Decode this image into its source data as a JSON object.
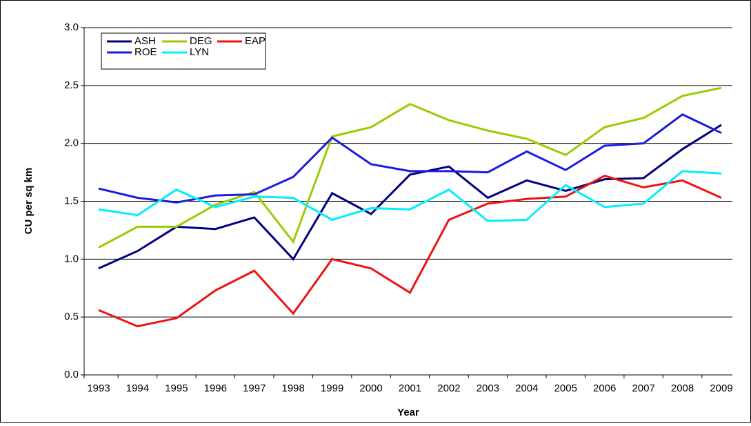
{
  "chart_data": {
    "type": "line",
    "xlabel": "Year",
    "ylabel": "CU per sq km",
    "categories": [
      "1993",
      "1994",
      "1995",
      "1996",
      "1997",
      "1998",
      "1999",
      "2000",
      "2001",
      "2002",
      "2003",
      "2004",
      "2005",
      "2006",
      "2007",
      "2008",
      "2009"
    ],
    "series": [
      {
        "name": "ASH",
        "color": "#000080",
        "values": [
          0.92,
          1.07,
          1.28,
          1.26,
          1.36,
          1.0,
          1.57,
          1.39,
          1.73,
          1.8,
          1.53,
          1.68,
          1.59,
          1.69,
          1.7,
          1.95,
          2.16
        ]
      },
      {
        "name": "DEG",
        "color": "#99cc00",
        "values": [
          1.1,
          1.28,
          1.28,
          1.47,
          1.58,
          1.15,
          2.06,
          2.14,
          2.34,
          2.2,
          2.11,
          2.04,
          1.9,
          2.14,
          2.22,
          2.41,
          2.48
        ]
      },
      {
        "name": "EAP",
        "color": "#ee1111",
        "values": [
          0.56,
          0.42,
          0.49,
          0.73,
          0.9,
          0.53,
          1.0,
          0.92,
          0.71,
          1.34,
          1.48,
          1.52,
          1.54,
          1.72,
          1.62,
          1.68,
          1.53
        ]
      },
      {
        "name": "ROE",
        "color": "#1a1ae0",
        "values": [
          1.61,
          1.53,
          1.49,
          1.55,
          1.56,
          1.71,
          2.05,
          1.82,
          1.76,
          1.76,
          1.75,
          1.93,
          1.77,
          1.98,
          2.0,
          2.25,
          2.09
        ]
      },
      {
        "name": "LYN",
        "color": "#00eeff",
        "values": [
          1.43,
          1.38,
          1.6,
          1.45,
          1.54,
          1.53,
          1.34,
          1.44,
          1.43,
          1.6,
          1.33,
          1.34,
          1.64,
          1.45,
          1.48,
          1.76,
          1.74
        ]
      }
    ],
    "ylim": [
      0,
      3
    ],
    "yticks": [
      {
        "value": 0,
        "label": "0.0"
      },
      0.5,
      {
        "value": 1,
        "label": "1.0"
      },
      1.5,
      {
        "value": 2,
        "label": "2.0"
      },
      2.5,
      {
        "value": 3,
        "label": "3.0"
      }
    ],
    "grid": true,
    "legend": "upper left"
  }
}
